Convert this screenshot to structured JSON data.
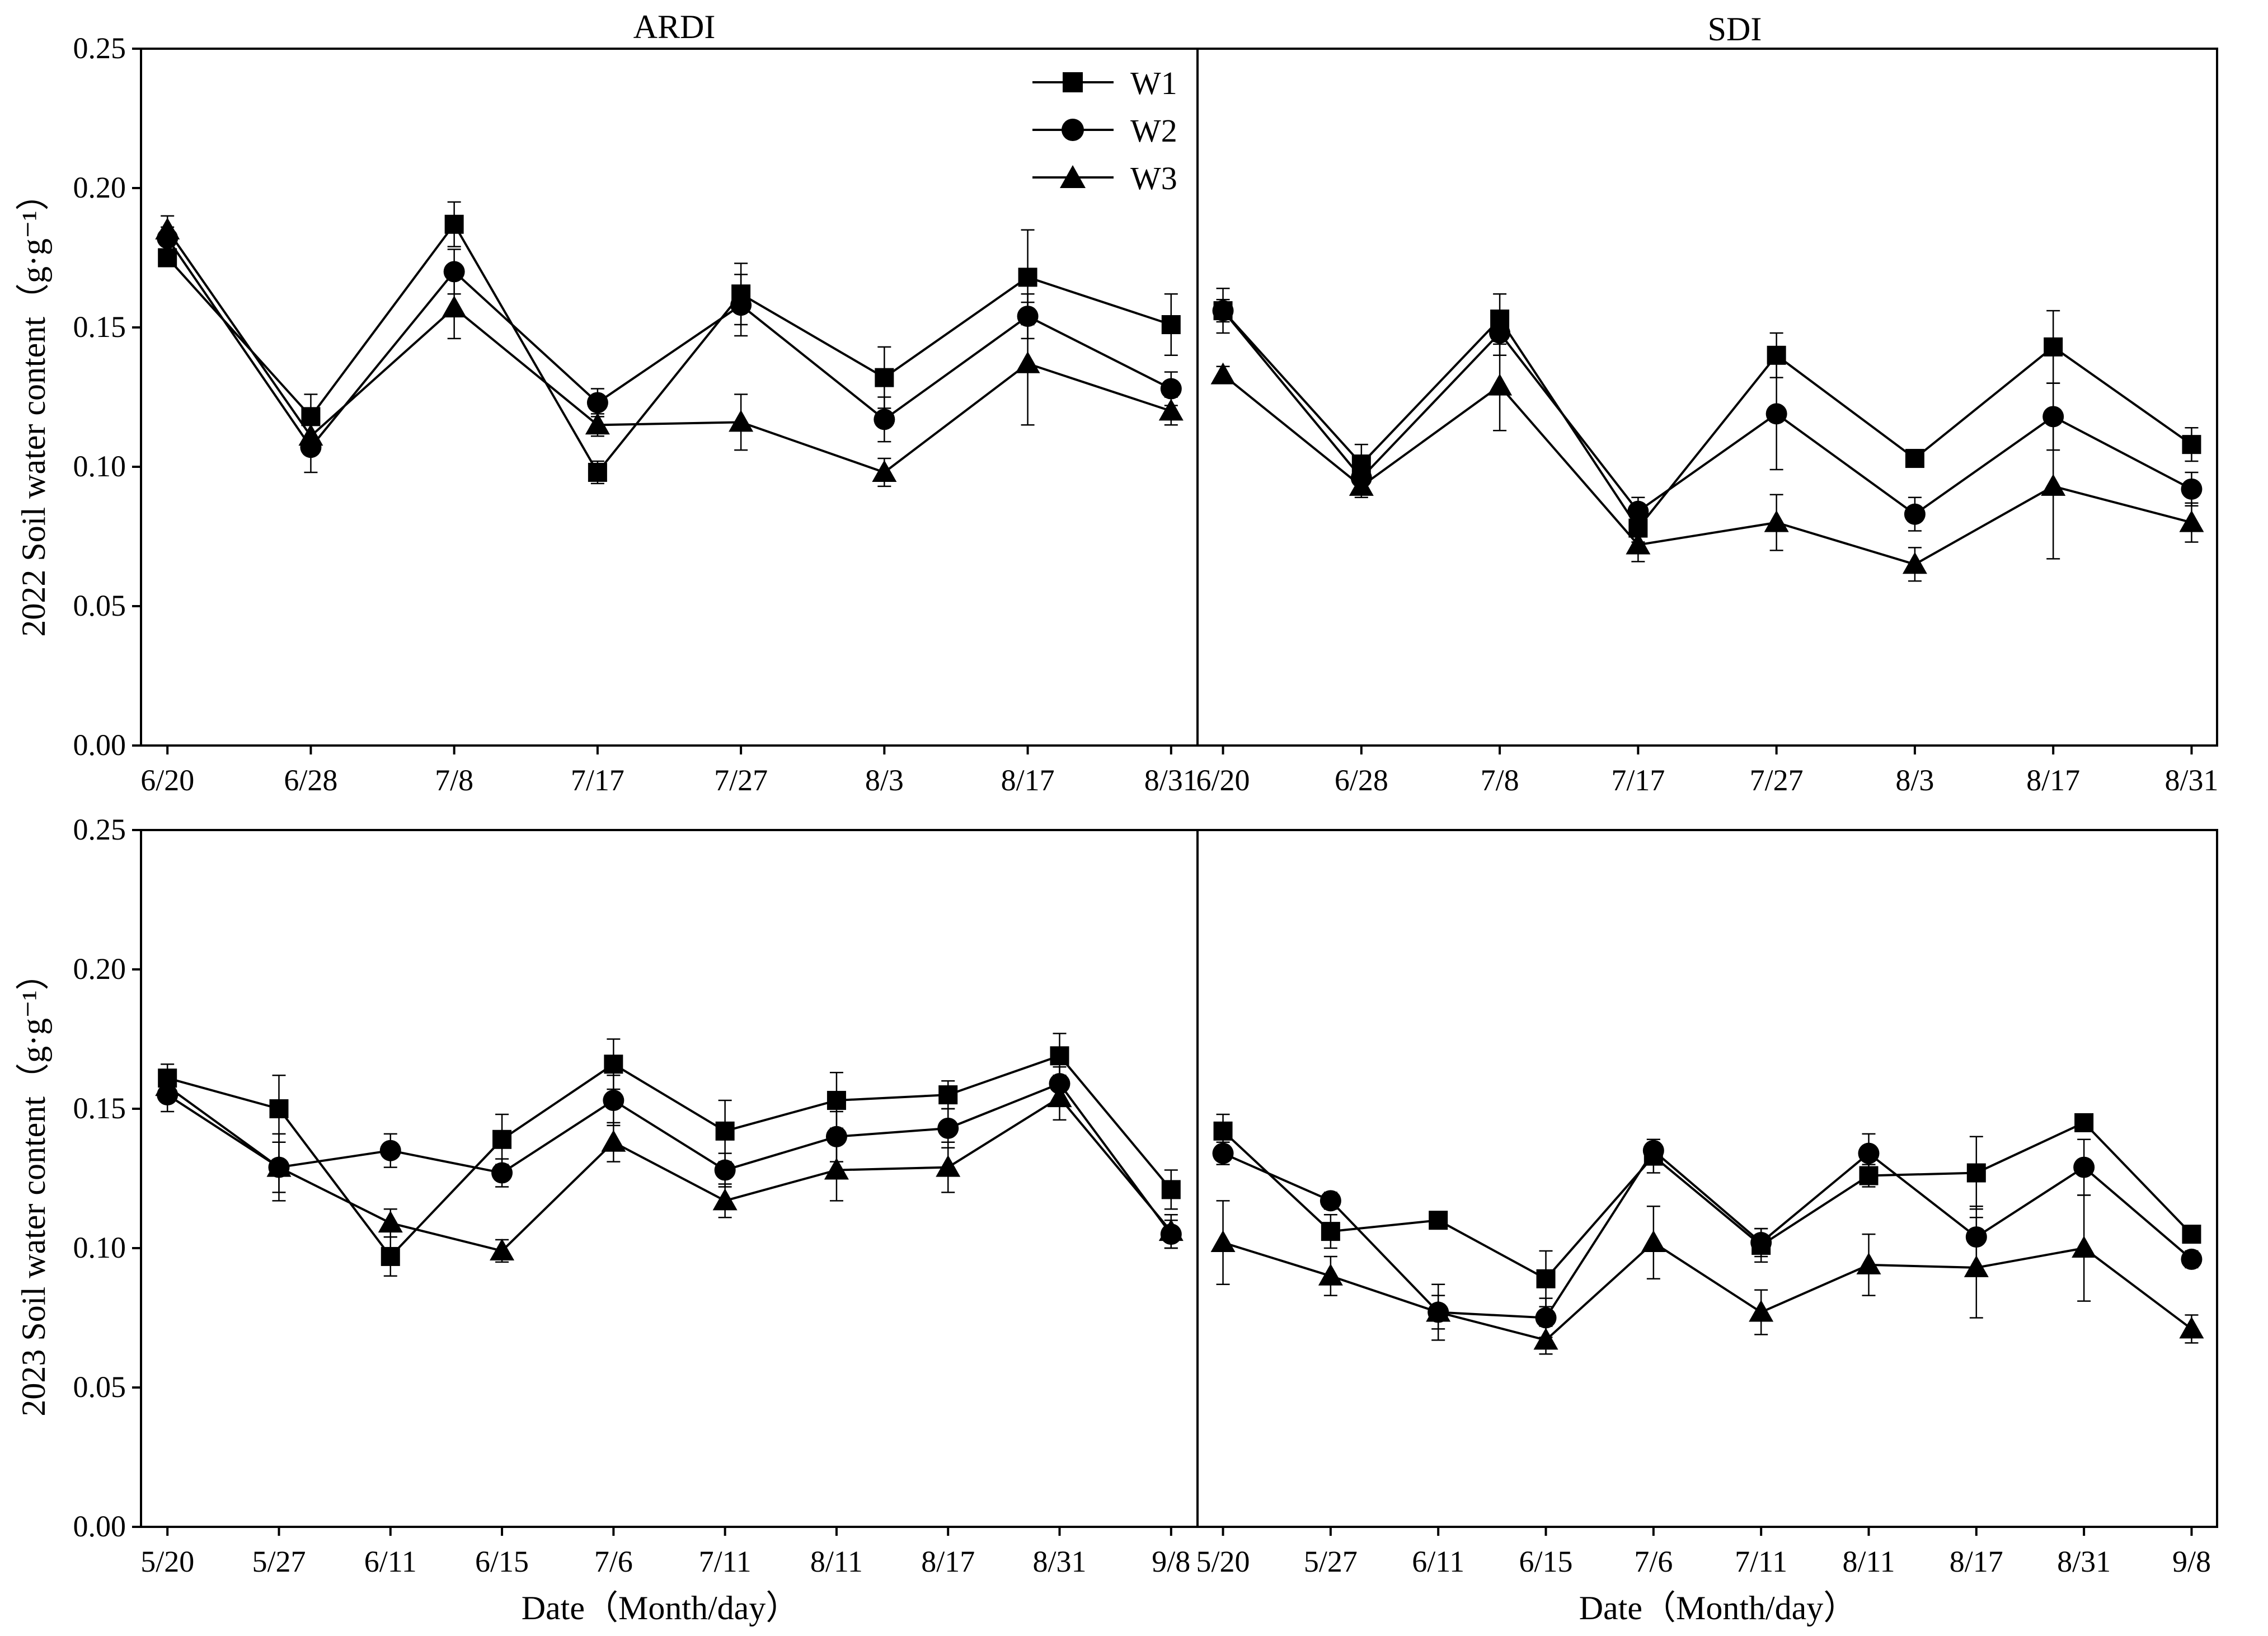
{
  "chart_data": {
    "type": "line",
    "y_ticks": [
      "0.00",
      "0.05",
      "0.10",
      "0.15",
      "0.20",
      "0.25"
    ],
    "ylim": [
      0,
      0.25
    ],
    "legend": [
      "W1",
      "W2",
      "W3"
    ],
    "legend_position": "top-right of upper-left panel",
    "titles": [
      "ARDI",
      "SDI"
    ],
    "xlabel": "Date（Month/day）",
    "ylabels": [
      "2022 Soil water content（g·g⁻¹）",
      "2023 Soil water content（g·g⁻¹）"
    ],
    "panels": [
      {
        "year": "2022",
        "method": "ARDI",
        "title": "ARDI",
        "categories": [
          "6/20",
          "6/28",
          "7/8",
          "7/17",
          "7/27",
          "8/3",
          "8/17",
          "8/31"
        ],
        "series": [
          {
            "name": "W1",
            "marker": "square",
            "values": [
              0.175,
              0.118,
              0.187,
              0.098,
              0.162,
              0.132,
              0.168,
              0.151
            ],
            "errors": [
              0.003,
              0.008,
              0.008,
              0.004,
              0.011,
              0.011,
              0.017,
              0.011
            ]
          },
          {
            "name": "W2",
            "marker": "circle",
            "values": [
              0.182,
              0.107,
              0.17,
              0.123,
              0.158,
              0.117,
              0.154,
              0.128
            ],
            "errors": [
              0.004,
              0.009,
              0.008,
              0.005,
              0.011,
              0.008,
              0.008,
              0.006
            ]
          },
          {
            "name": "W3",
            "marker": "triangle",
            "values": [
              0.185,
              0.111,
              0.157,
              0.115,
              0.116,
              0.098,
              0.137,
              0.12
            ],
            "errors": [
              0.005,
              0.005,
              0.011,
              0.004,
              0.01,
              0.005,
              0.022,
              0.005
            ]
          }
        ]
      },
      {
        "year": "2022",
        "method": "SDI",
        "title": "SDI",
        "categories": [
          "6/20",
          "6/28",
          "7/8",
          "7/17",
          "7/27",
          "8/3",
          "8/17",
          "8/31"
        ],
        "series": [
          {
            "name": "W1",
            "marker": "square",
            "values": [
              0.156,
              0.101,
              0.153,
              0.078,
              0.14,
              0.103,
              0.143,
              0.108
            ],
            "errors": [
              0.008,
              0.007,
              0.009,
              0.005,
              0.008,
              0.003,
              0.013,
              0.006
            ]
          },
          {
            "name": "W2",
            "marker": "circle",
            "values": [
              0.156,
              0.096,
              0.148,
              0.084,
              0.119,
              0.083,
              0.118,
              0.092
            ],
            "errors": [
              0.004,
              0.004,
              0.008,
              0.005,
              0.02,
              0.006,
              0.012,
              0.006
            ]
          },
          {
            "name": "W3",
            "marker": "triangle",
            "values": [
              0.133,
              0.093,
              0.129,
              0.072,
              0.08,
              0.065,
              0.093,
              0.08
            ],
            "errors": [
              0.003,
              0.004,
              0.016,
              0.006,
              0.01,
              0.006,
              0.026,
              0.007
            ]
          }
        ]
      },
      {
        "year": "2023",
        "method": "ARDI",
        "title": "",
        "categories": [
          "5/20",
          "5/27",
          "6/11",
          "6/15",
          "7/6",
          "7/11",
          "8/11",
          "8/17",
          "8/31",
          "9/8"
        ],
        "series": [
          {
            "name": "W1",
            "marker": "square",
            "values": [
              0.161,
              0.15,
              0.097,
              0.139,
              0.166,
              0.142,
              0.153,
              0.155,
              0.169,
              0.121
            ],
            "errors": [
              0.005,
              0.012,
              0.007,
              0.009,
              0.009,
              0.011,
              0.01,
              0.005,
              0.008,
              0.007
            ]
          },
          {
            "name": "W2",
            "marker": "circle",
            "values": [
              0.155,
              0.129,
              0.135,
              0.127,
              0.153,
              0.128,
              0.14,
              0.143,
              0.159,
              0.105
            ],
            "errors": [
              0.006,
              0.009,
              0.006,
              0.005,
              0.009,
              0.006,
              0.009,
              0.007,
              0.006,
              0.005
            ]
          },
          {
            "name": "W3",
            "marker": "triangle",
            "values": [
              0.158,
              0.129,
              0.109,
              0.099,
              0.138,
              0.117,
              0.128,
              0.129,
              0.154,
              0.106
            ],
            "errors": [
              0.004,
              0.012,
              0.005,
              0.004,
              0.007,
              0.006,
              0.011,
              0.009,
              0.008,
              0.006
            ]
          }
        ]
      },
      {
        "year": "2023",
        "method": "SDI",
        "title": "",
        "categories": [
          "5/20",
          "5/27",
          "6/11",
          "6/15",
          "7/6",
          "7/11",
          "8/11",
          "8/17",
          "8/31",
          "9/8"
        ],
        "series": [
          {
            "name": "W1",
            "marker": "square",
            "values": [
              0.142,
              0.106,
              0.11,
              0.089,
              0.133,
              0.101,
              0.126,
              0.127,
              0.145,
              0.105
            ],
            "errors": [
              0.006,
              0.006,
              0.003,
              0.01,
              0.006,
              0.006,
              0.004,
              0.013,
              0.003,
              0.003
            ]
          },
          {
            "name": "W2",
            "marker": "circle",
            "values": [
              0.134,
              0.117,
              0.077,
              0.075,
              0.135,
              0.102,
              0.134,
              0.104,
              0.129,
              0.096
            ],
            "errors": [
              0.004,
              0.003,
              0.01,
              0.007,
              0.004,
              0.005,
              0.007,
              0.011,
              0.01,
              0.003
            ]
          },
          {
            "name": "W3",
            "marker": "triangle",
            "values": [
              0.102,
              0.09,
              0.077,
              0.067,
              0.102,
              0.077,
              0.094,
              0.093,
              0.1,
              0.071
            ],
            "errors": [
              0.015,
              0.007,
              0.006,
              0.005,
              0.013,
              0.008,
              0.011,
              0.018,
              0.019,
              0.005
            ]
          }
        ]
      }
    ]
  }
}
